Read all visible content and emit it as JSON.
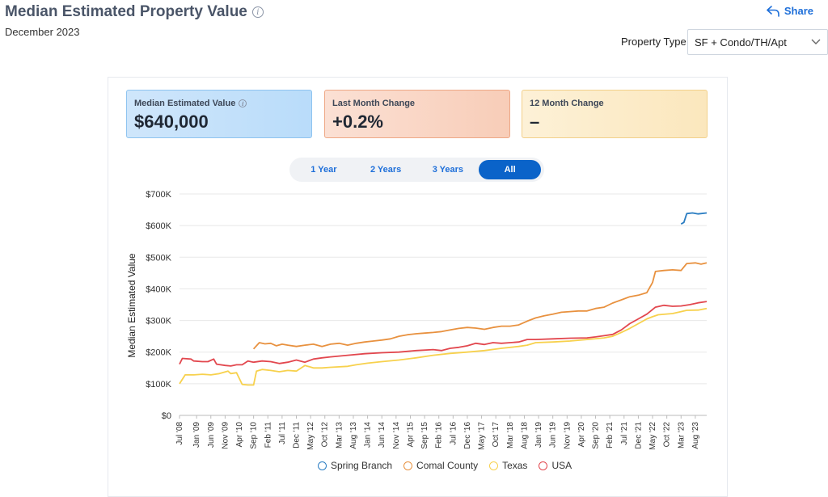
{
  "header": {
    "title": "Median Estimated Property Value",
    "subtitle": "December 2023",
    "share_label": "Share",
    "property_type_label": "Property Type",
    "property_type_value": "SF + Condo/TH/Apt"
  },
  "cards": [
    {
      "label": "Median Estimated Value",
      "value": "$640,000"
    },
    {
      "label": "Last Month Change",
      "value": "+0.2%"
    },
    {
      "label": "12 Month Change",
      "value": "–"
    }
  ],
  "range_tabs": [
    "1 Year",
    "2 Years",
    "3 Years",
    "All"
  ],
  "active_tab": "All",
  "colors": {
    "Spring Branch": "#2a7dc2",
    "Comal County": "#e8913f",
    "Texas": "#f7d14d",
    "USA": "#e2474e",
    "accent": "#0a63c9"
  },
  "chart_data": {
    "type": "line",
    "ylabel": "Median Estimated Value",
    "xlabel": "",
    "ylim": [
      0,
      700000
    ],
    "xlim": [
      "2008-07",
      "2023-12"
    ],
    "y_ticks": [
      "$0",
      "$100K",
      "$200K",
      "$300K",
      "$400K",
      "$500K",
      "$600K",
      "$700K"
    ],
    "x_ticks": [
      "Jul '08",
      "Jan '09",
      "Jun '09",
      "Nov '09",
      "Apr '10",
      "Sep '10",
      "Feb '11",
      "Jul '11",
      "Dec '11",
      "May '12",
      "Oct '12",
      "Mar '13",
      "Aug '13",
      "Jan '14",
      "Jun '14",
      "Nov '14",
      "Apr '15",
      "Sep '15",
      "Feb '16",
      "Jul '16",
      "Dec '16",
      "May '17",
      "Oct '17",
      "Mar '18",
      "Aug '18",
      "Jan '19",
      "Jun '19",
      "Nov '19",
      "Apr '20",
      "Sep '20",
      "Feb '21",
      "Jul '21",
      "Dec '21",
      "May '22",
      "Oct '22",
      "Mar '23",
      "Aug '23"
    ],
    "legend_position": "bottom",
    "grid": true,
    "series": [
      {
        "name": "Spring Branch",
        "points": [
          [
            "2023-03",
            605000
          ],
          [
            "2023-04",
            610000
          ],
          [
            "2023-05",
            638000
          ],
          [
            "2023-07",
            640000
          ],
          [
            "2023-09",
            637000
          ],
          [
            "2023-12",
            640000
          ]
        ]
      },
      {
        "name": "Comal County",
        "points": [
          [
            "2010-09",
            210000
          ],
          [
            "2010-11",
            230000
          ],
          [
            "2011-01",
            226000
          ],
          [
            "2011-03",
            228000
          ],
          [
            "2011-05",
            220000
          ],
          [
            "2011-07",
            225000
          ],
          [
            "2011-09",
            222000
          ],
          [
            "2011-12",
            218000
          ],
          [
            "2012-03",
            222000
          ],
          [
            "2012-06",
            225000
          ],
          [
            "2012-09",
            218000
          ],
          [
            "2012-12",
            225000
          ],
          [
            "2013-03",
            228000
          ],
          [
            "2013-06",
            222000
          ],
          [
            "2013-09",
            228000
          ],
          [
            "2013-12",
            232000
          ],
          [
            "2014-03",
            235000
          ],
          [
            "2014-06",
            238000
          ],
          [
            "2014-09",
            242000
          ],
          [
            "2014-12",
            250000
          ],
          [
            "2015-03",
            255000
          ],
          [
            "2015-06",
            258000
          ],
          [
            "2015-09",
            260000
          ],
          [
            "2015-12",
            262000
          ],
          [
            "2016-03",
            265000
          ],
          [
            "2016-06",
            270000
          ],
          [
            "2016-09",
            275000
          ],
          [
            "2016-12",
            278000
          ],
          [
            "2017-03",
            276000
          ],
          [
            "2017-06",
            272000
          ],
          [
            "2017-09",
            278000
          ],
          [
            "2017-12",
            282000
          ],
          [
            "2018-03",
            282000
          ],
          [
            "2018-06",
            286000
          ],
          [
            "2018-09",
            298000
          ],
          [
            "2018-12",
            308000
          ],
          [
            "2019-03",
            315000
          ],
          [
            "2019-06",
            320000
          ],
          [
            "2019-09",
            326000
          ],
          [
            "2019-12",
            328000
          ],
          [
            "2020-03",
            330000
          ],
          [
            "2020-06",
            330000
          ],
          [
            "2020-09",
            338000
          ],
          [
            "2020-12",
            342000
          ],
          [
            "2021-03",
            355000
          ],
          [
            "2021-06",
            365000
          ],
          [
            "2021-09",
            375000
          ],
          [
            "2021-12",
            380000
          ],
          [
            "2022-03",
            388000
          ],
          [
            "2022-05",
            420000
          ],
          [
            "2022-06",
            455000
          ],
          [
            "2022-09",
            458000
          ],
          [
            "2022-12",
            460000
          ],
          [
            "2023-03",
            458000
          ],
          [
            "2023-05",
            480000
          ],
          [
            "2023-08",
            482000
          ],
          [
            "2023-10",
            478000
          ],
          [
            "2023-12",
            482000
          ]
        ]
      },
      {
        "name": "Texas",
        "points": [
          [
            "2008-07",
            100000
          ],
          [
            "2008-09",
            128000
          ],
          [
            "2008-12",
            128000
          ],
          [
            "2009-03",
            130000
          ],
          [
            "2009-06",
            128000
          ],
          [
            "2009-09",
            132000
          ],
          [
            "2009-12",
            140000
          ],
          [
            "2010-01",
            132000
          ],
          [
            "2010-03",
            135000
          ],
          [
            "2010-05",
            98000
          ],
          [
            "2010-07",
            96000
          ],
          [
            "2010-09",
            96000
          ],
          [
            "2010-10",
            140000
          ],
          [
            "2010-12",
            145000
          ],
          [
            "2011-03",
            142000
          ],
          [
            "2011-06",
            138000
          ],
          [
            "2011-09",
            142000
          ],
          [
            "2011-12",
            140000
          ],
          [
            "2012-03",
            158000
          ],
          [
            "2012-06",
            150000
          ],
          [
            "2012-09",
            150000
          ],
          [
            "2012-12",
            152000
          ],
          [
            "2013-06",
            155000
          ],
          [
            "2013-09",
            160000
          ],
          [
            "2014-01",
            165000
          ],
          [
            "2014-06",
            170000
          ],
          [
            "2014-12",
            175000
          ],
          [
            "2015-06",
            182000
          ],
          [
            "2015-12",
            190000
          ],
          [
            "2016-06",
            196000
          ],
          [
            "2016-12",
            200000
          ],
          [
            "2017-06",
            205000
          ],
          [
            "2017-12",
            212000
          ],
          [
            "2018-06",
            218000
          ],
          [
            "2018-09",
            222000
          ],
          [
            "2018-12",
            230000
          ],
          [
            "2019-06",
            232000
          ],
          [
            "2019-12",
            235000
          ],
          [
            "2020-06",
            240000
          ],
          [
            "2020-12",
            245000
          ],
          [
            "2021-03",
            250000
          ],
          [
            "2021-06",
            262000
          ],
          [
            "2021-09",
            275000
          ],
          [
            "2021-12",
            290000
          ],
          [
            "2022-03",
            305000
          ],
          [
            "2022-05",
            312000
          ],
          [
            "2022-07",
            318000
          ],
          [
            "2022-12",
            322000
          ],
          [
            "2023-03",
            328000
          ],
          [
            "2023-05",
            332000
          ],
          [
            "2023-09",
            333000
          ],
          [
            "2023-12",
            338000
          ]
        ]
      },
      {
        "name": "USA",
        "points": [
          [
            "2008-07",
            162000
          ],
          [
            "2008-08",
            180000
          ],
          [
            "2008-11",
            178000
          ],
          [
            "2008-12",
            172000
          ],
          [
            "2009-03",
            170000
          ],
          [
            "2009-05",
            170000
          ],
          [
            "2009-07",
            178000
          ],
          [
            "2009-08",
            162000
          ],
          [
            "2009-11",
            158000
          ],
          [
            "2010-01",
            156000
          ],
          [
            "2010-03",
            160000
          ],
          [
            "2010-05",
            160000
          ],
          [
            "2010-07",
            172000
          ],
          [
            "2010-09",
            168000
          ],
          [
            "2010-12",
            172000
          ],
          [
            "2011-03",
            170000
          ],
          [
            "2011-06",
            164000
          ],
          [
            "2011-09",
            168000
          ],
          [
            "2011-12",
            175000
          ],
          [
            "2012-03",
            168000
          ],
          [
            "2012-06",
            178000
          ],
          [
            "2012-09",
            182000
          ],
          [
            "2012-12",
            185000
          ],
          [
            "2013-06",
            190000
          ],
          [
            "2013-12",
            195000
          ],
          [
            "2014-06",
            198000
          ],
          [
            "2014-12",
            200000
          ],
          [
            "2015-06",
            205000
          ],
          [
            "2015-12",
            208000
          ],
          [
            "2016-03",
            205000
          ],
          [
            "2016-06",
            212000
          ],
          [
            "2016-09",
            215000
          ],
          [
            "2016-12",
            220000
          ],
          [
            "2017-03",
            228000
          ],
          [
            "2017-06",
            224000
          ],
          [
            "2017-09",
            230000
          ],
          [
            "2017-12",
            228000
          ],
          [
            "2018-03",
            230000
          ],
          [
            "2018-06",
            232000
          ],
          [
            "2018-09",
            240000
          ],
          [
            "2018-12",
            240000
          ],
          [
            "2019-06",
            242000
          ],
          [
            "2019-12",
            244000
          ],
          [
            "2020-06",
            245000
          ],
          [
            "2020-09",
            248000
          ],
          [
            "2020-12",
            252000
          ],
          [
            "2021-03",
            256000
          ],
          [
            "2021-06",
            270000
          ],
          [
            "2021-09",
            290000
          ],
          [
            "2021-12",
            305000
          ],
          [
            "2022-03",
            320000
          ],
          [
            "2022-06",
            342000
          ],
          [
            "2022-09",
            348000
          ],
          [
            "2022-12",
            345000
          ],
          [
            "2023-03",
            346000
          ],
          [
            "2023-06",
            350000
          ],
          [
            "2023-09",
            356000
          ],
          [
            "2023-12",
            360000
          ]
        ]
      }
    ]
  }
}
